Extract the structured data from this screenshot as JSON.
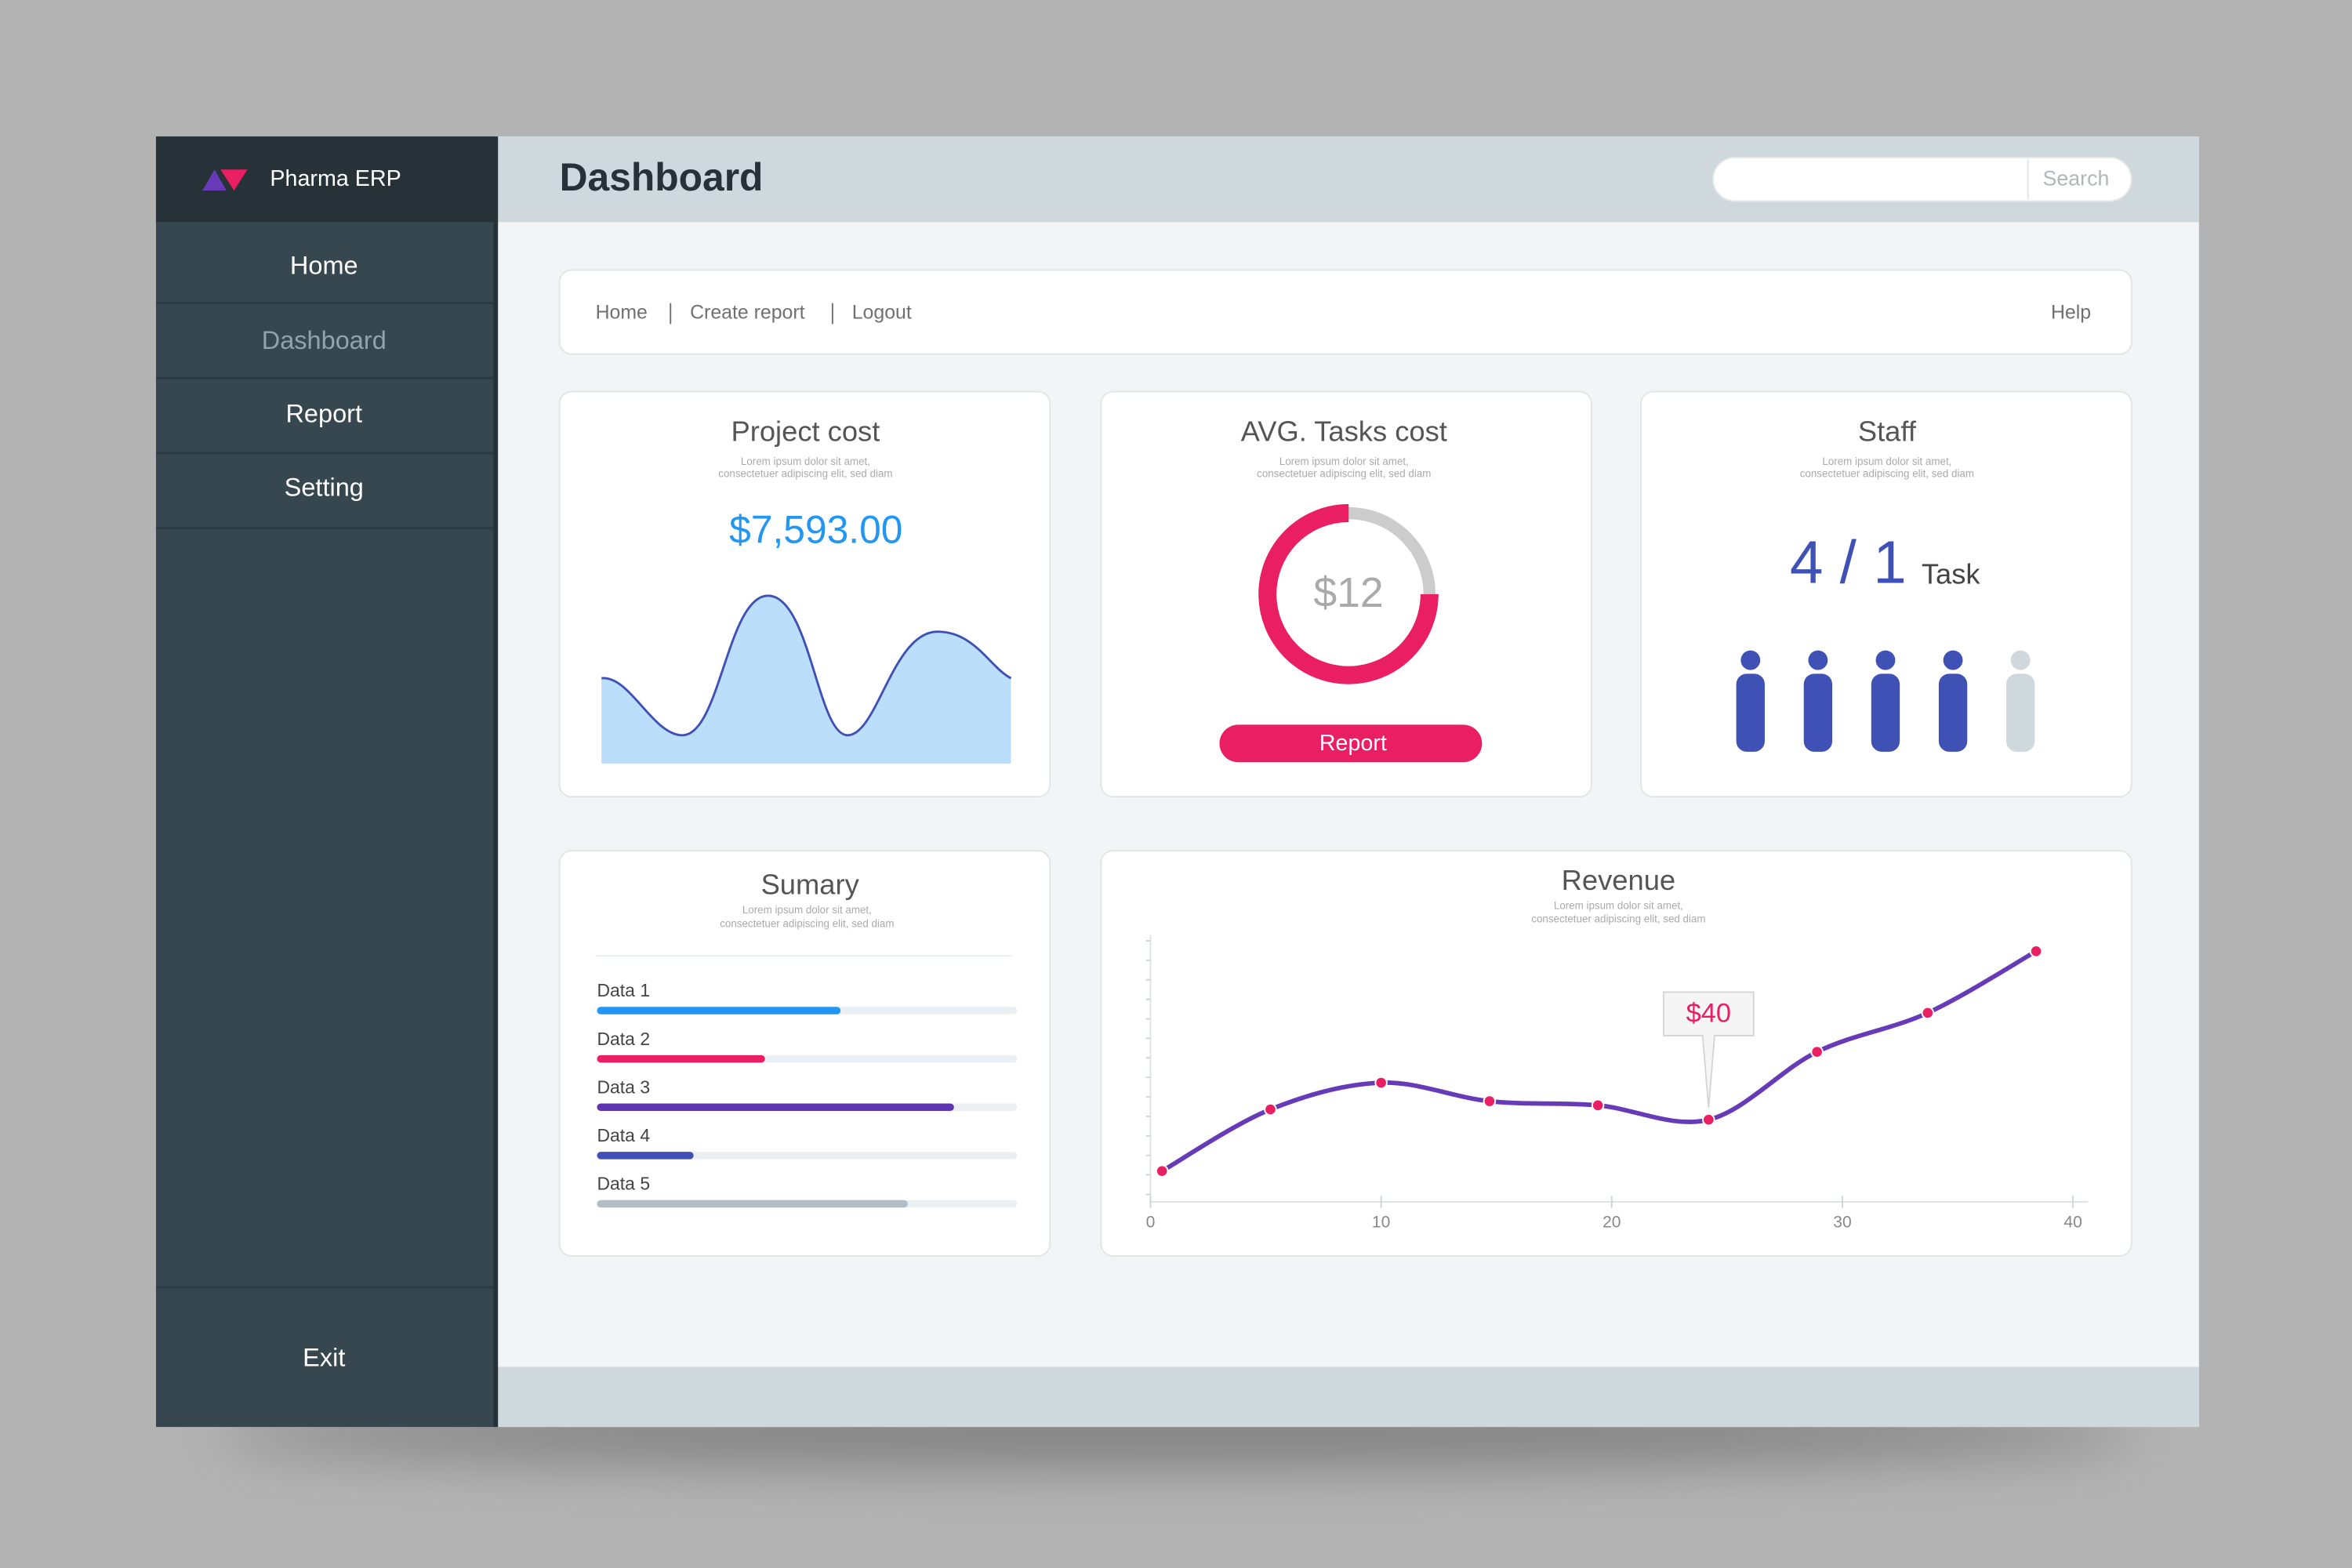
{
  "sidebar": {
    "brand": "Pharma ERP",
    "menu": [
      "Home",
      "Dashboard",
      "Report",
      "Setting"
    ],
    "exit": "Exit"
  },
  "header": {
    "title": "Dashboard",
    "search_button": "Search"
  },
  "nav": {
    "links": [
      "Home",
      "Create report",
      "Logout"
    ],
    "help": "Help"
  },
  "cards": {
    "project_cost": {
      "title": "Project cost",
      "subtitle": [
        "Lorem ipsum dolor sit amet,",
        "consectetuer adipiscing elit, sed diam"
      ],
      "value": "$7,593.00"
    },
    "tasks_cost": {
      "title": "AVG. Tasks cost",
      "subtitle": [
        "Lorem ipsum dolor sit amet,",
        "consectetuer adipiscing elit, sed diam"
      ],
      "value": "$12",
      "button": "Report",
      "donut": {
        "value": 75,
        "max": 100
      }
    },
    "staff": {
      "title": "Staff",
      "subtitle": [
        "Lorem ipsum dolor sit amet,",
        "consectetuer adipiscing elit, sed diam"
      ],
      "count": "4 / 1",
      "unit": "Task",
      "total": 5,
      "active": 4
    }
  },
  "summary": {
    "title": "Sumary",
    "subtitle": [
      "Lorem ipsum dolor sit amet,",
      "consectetuer adipiscing elit, sed diam"
    ],
    "categories": [
      "Data 1",
      "Data 2",
      "Data 3",
      "Data 4",
      "Data 5"
    ],
    "values": [
      58,
      40,
      85,
      23,
      74
    ],
    "colors": [
      "#2196f3",
      "#e91e63",
      "#5e35b1",
      "#3f51b5",
      "#b0bec5"
    ],
    "xlim": [
      0,
      100
    ]
  },
  "chart_data": {
    "type": "line",
    "title": "Revenue",
    "subtitle": [
      "Lorem ipsum dolor sit amet,",
      "consectetuer adipiscing elit, sed diam"
    ],
    "x": [
      0.5,
      5.2,
      10,
      14.7,
      19.4,
      24.2,
      28.9,
      33.7,
      38.4
    ],
    "values": [
      15,
      45,
      58,
      49,
      47,
      40,
      73,
      92,
      122
    ],
    "color": "#673ab7",
    "marker_color": "#e91e63",
    "xlim": [
      0,
      40
    ],
    "xticks": [
      0,
      10,
      20,
      30,
      40
    ],
    "ylim": [
      0,
      130
    ],
    "annotations": [
      {
        "text": "$40",
        "x": 24.2,
        "y": 40
      }
    ]
  }
}
